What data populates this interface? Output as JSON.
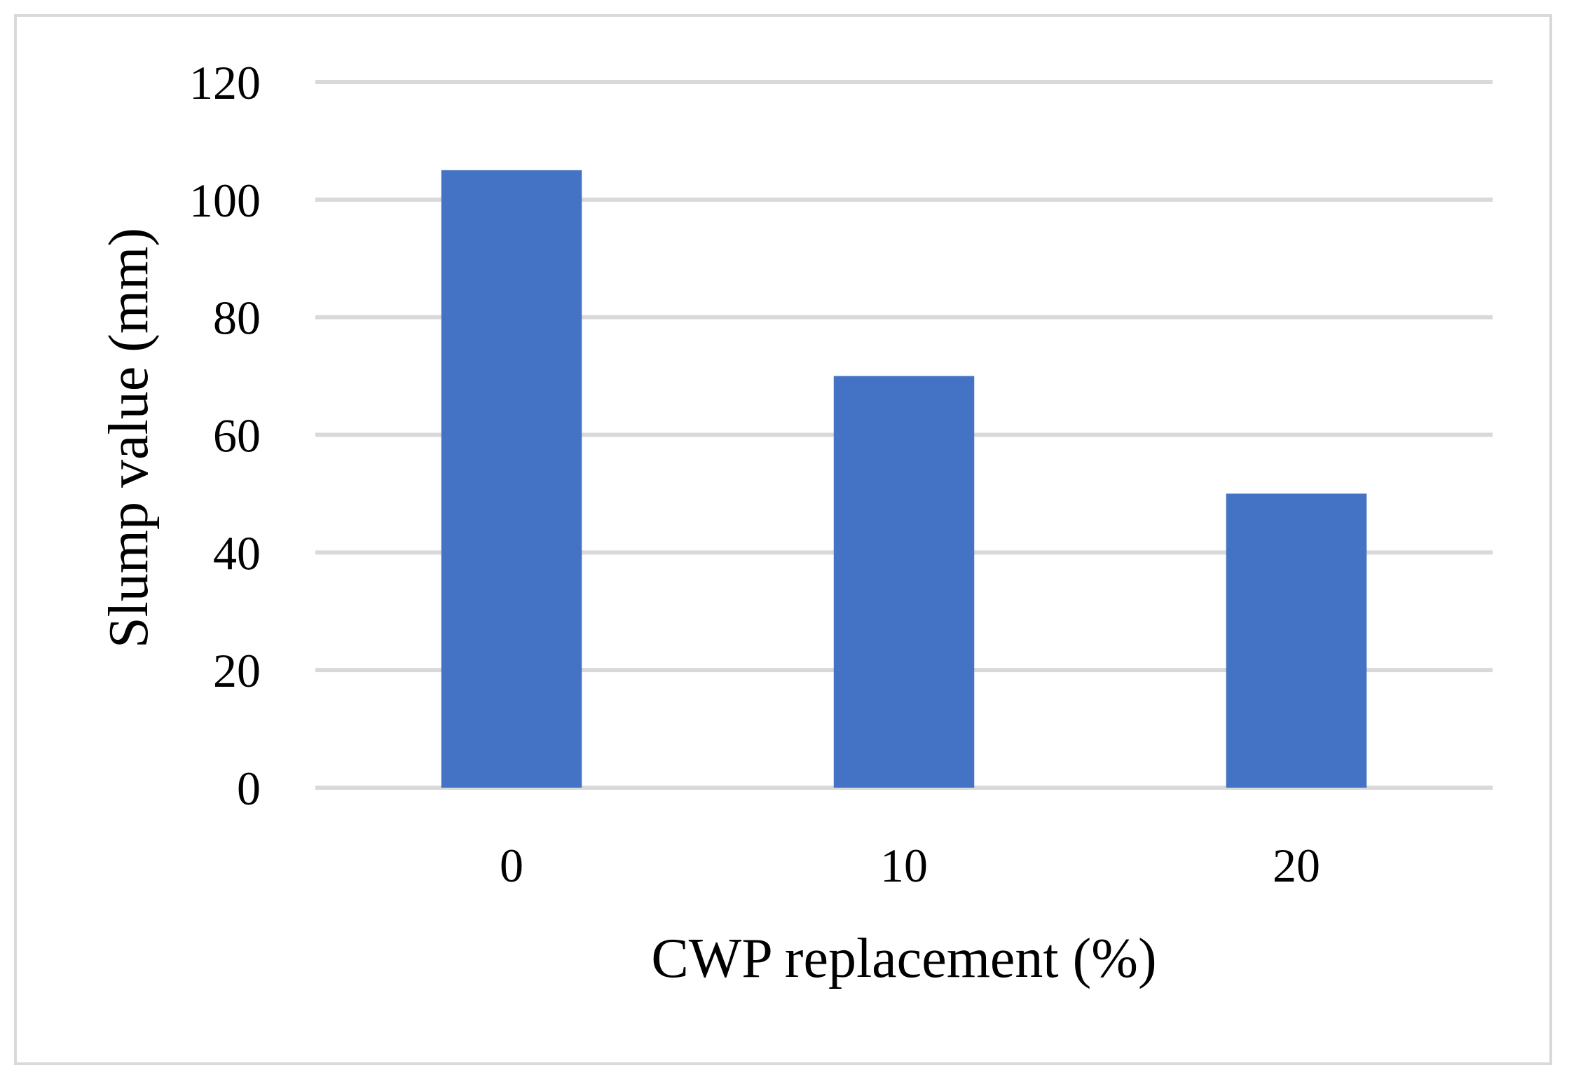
{
  "chart_data": {
    "type": "bar",
    "title": "",
    "xlabel": "CWP replacement (%)",
    "ylabel": "Slump value (mm)",
    "categories": [
      "0",
      "10",
      "20"
    ],
    "values": [
      105,
      70,
      50
    ],
    "ylim": [
      0,
      120
    ],
    "yticks": [
      "0",
      "20",
      "40",
      "60",
      "80",
      "100",
      "120"
    ],
    "grid": true,
    "legend": "none",
    "bar_color": "#4472c4",
    "grid_color": "#d9d9d9"
  }
}
